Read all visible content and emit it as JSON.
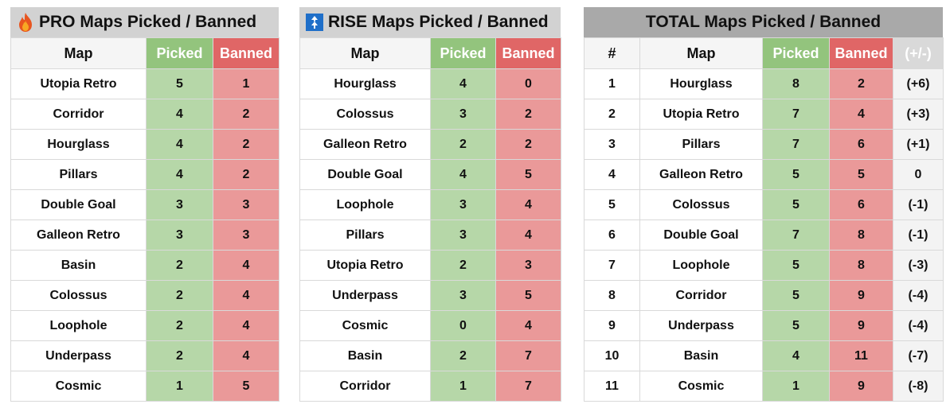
{
  "pro": {
    "title": "PRO Maps Picked / Banned",
    "icon": "fire-icon",
    "headers": {
      "map": "Map",
      "picked": "Picked",
      "banned": "Banned"
    },
    "rows": [
      {
        "map": "Utopia Retro",
        "picked": "5",
        "banned": "1"
      },
      {
        "map": "Corridor",
        "picked": "4",
        "banned": "2"
      },
      {
        "map": "Hourglass",
        "picked": "4",
        "banned": "2"
      },
      {
        "map": "Pillars",
        "picked": "4",
        "banned": "2"
      },
      {
        "map": "Double Goal",
        "picked": "3",
        "banned": "3"
      },
      {
        "map": "Galleon Retro",
        "picked": "3",
        "banned": "3"
      },
      {
        "map": "Basin",
        "picked": "2",
        "banned": "4"
      },
      {
        "map": "Colossus",
        "picked": "2",
        "banned": "4"
      },
      {
        "map": "Loophole",
        "picked": "2",
        "banned": "4"
      },
      {
        "map": "Underpass",
        "picked": "2",
        "banned": "4"
      },
      {
        "map": "Cosmic",
        "picked": "1",
        "banned": "5"
      }
    ]
  },
  "rise": {
    "title": "RISE Maps Picked / Banned",
    "icon": "rise-arrows-icon",
    "icon_color": "#1f6fc9",
    "headers": {
      "map": "Map",
      "picked": "Picked",
      "banned": "Banned"
    },
    "rows": [
      {
        "map": "Hourglass",
        "picked": "4",
        "banned": "0"
      },
      {
        "map": "Colossus",
        "picked": "3",
        "banned": "2"
      },
      {
        "map": "Galleon Retro",
        "picked": "2",
        "banned": "2"
      },
      {
        "map": "Double Goal",
        "picked": "4",
        "banned": "5"
      },
      {
        "map": "Loophole",
        "picked": "3",
        "banned": "4"
      },
      {
        "map": "Pillars",
        "picked": "3",
        "banned": "4"
      },
      {
        "map": "Utopia Retro",
        "picked": "2",
        "banned": "3"
      },
      {
        "map": "Underpass",
        "picked": "3",
        "banned": "5"
      },
      {
        "map": "Cosmic",
        "picked": "0",
        "banned": "4"
      },
      {
        "map": "Basin",
        "picked": "2",
        "banned": "7"
      },
      {
        "map": "Corridor",
        "picked": "1",
        "banned": "7"
      }
    ]
  },
  "total": {
    "title": "TOTAL Maps Picked / Banned",
    "headers": {
      "num": "#",
      "map": "Map",
      "picked": "Picked",
      "banned": "Banned",
      "diff": "(+/-)"
    },
    "rows": [
      {
        "num": "1",
        "map": "Hourglass",
        "picked": "8",
        "banned": "2",
        "diff": "(+6)"
      },
      {
        "num": "2",
        "map": "Utopia Retro",
        "picked": "7",
        "banned": "4",
        "diff": "(+3)"
      },
      {
        "num": "3",
        "map": "Pillars",
        "picked": "7",
        "banned": "6",
        "diff": "(+1)"
      },
      {
        "num": "4",
        "map": "Galleon Retro",
        "picked": "5",
        "banned": "5",
        "diff": "0"
      },
      {
        "num": "5",
        "map": "Colossus",
        "picked": "5",
        "banned": "6",
        "diff": "(-1)"
      },
      {
        "num": "6",
        "map": "Double Goal",
        "picked": "7",
        "banned": "8",
        "diff": "(-1)"
      },
      {
        "num": "7",
        "map": "Loophole",
        "picked": "5",
        "banned": "8",
        "diff": "(-3)"
      },
      {
        "num": "8",
        "map": "Corridor",
        "picked": "5",
        "banned": "9",
        "diff": "(-4)"
      },
      {
        "num": "9",
        "map": "Underpass",
        "picked": "5",
        "banned": "9",
        "diff": "(-4)"
      },
      {
        "num": "10",
        "map": "Basin",
        "picked": "4",
        "banned": "11",
        "diff": "(-7)"
      },
      {
        "num": "11",
        "map": "Cosmic",
        "picked": "1",
        "banned": "9",
        "diff": "(-8)"
      }
    ]
  },
  "colors": {
    "picked_header": "#93c47d",
    "picked_cell": "#b6d7a8",
    "banned_header": "#e06666",
    "banned_cell": "#ea9999"
  }
}
